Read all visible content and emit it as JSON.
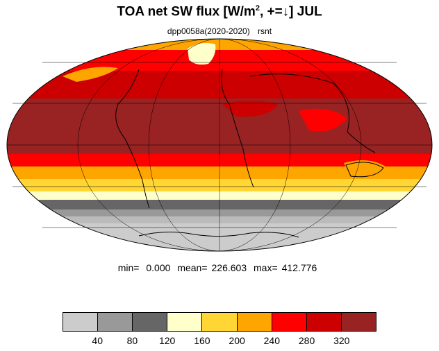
{
  "title": {
    "prefix": "TOA net SW flux [W/m",
    "superscript": "2",
    "suffix": ", +=↓]  JUL"
  },
  "subtitle": {
    "experiment": "dpp0058a(2020-2020)",
    "variable": "rsnt"
  },
  "stats": {
    "min_label": "min=",
    "min_value": "0.000",
    "mean_label": "mean=",
    "mean_value": "226.603",
    "max_label": "max=",
    "max_value": "412.776"
  },
  "colorbar": {
    "colors": [
      "#cccccc",
      "#999999",
      "#666666",
      "#ffffcc",
      "#ffd633",
      "#ffa500",
      "#ff0000",
      "#cc0000",
      "#992222"
    ],
    "tick_labels": [
      "40",
      "80",
      "120",
      "160",
      "200",
      "240",
      "280",
      "320"
    ]
  },
  "chart_data": {
    "type": "heatmap",
    "projection": "Mollweide",
    "legend_placement": "bottom",
    "zonal_bands_approx": [
      {
        "lat_range": [
          60,
          90
        ],
        "value_w_m2": 260
      },
      {
        "lat_range": [
          40,
          60
        ],
        "value_w_m2": 300
      },
      {
        "lat_range": [
          -15,
          40
        ],
        "value_w_m2": 340
      },
      {
        "lat_range": [
          -25,
          -15
        ],
        "value_w_m2": 260
      },
      {
        "lat_range": [
          -35,
          -25
        ],
        "value_w_m2": 210
      },
      {
        "lat_range": [
          -43,
          -35
        ],
        "value_w_m2": 150
      },
      {
        "lat_range": [
          -55,
          -43
        ],
        "value_w_m2": 90
      },
      {
        "lat_range": [
          -65,
          -55
        ],
        "value_w_m2": 50
      },
      {
        "lat_range": [
          -90,
          -65
        ],
        "value_w_m2": 20
      }
    ]
  }
}
